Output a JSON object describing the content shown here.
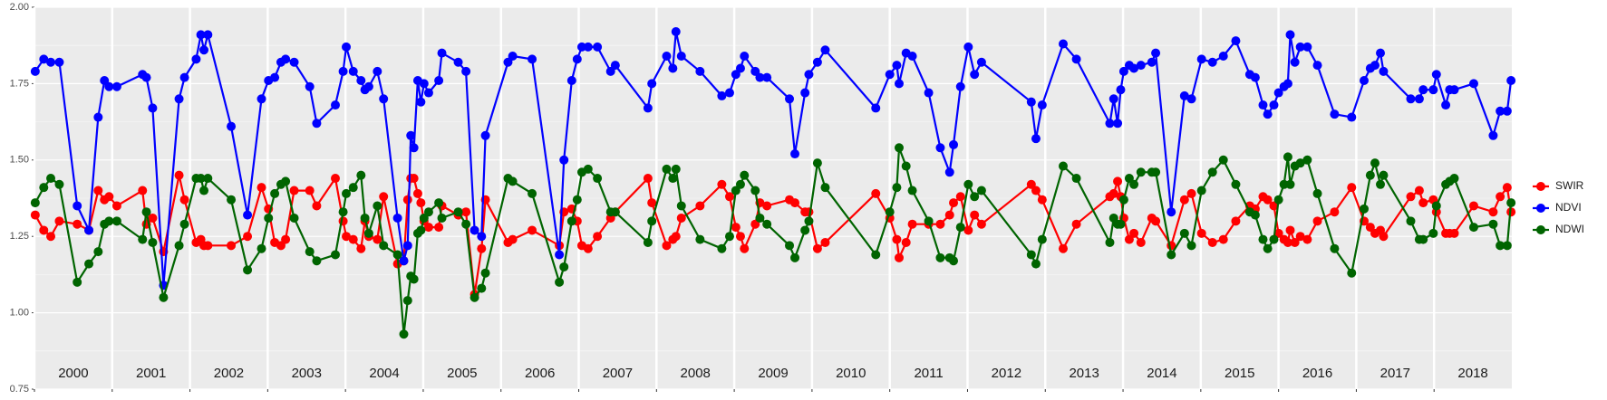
{
  "chart_data": {
    "type": "line",
    "x": [
      2000.01,
      2000.12,
      2000.21,
      2000.32,
      2000.55,
      2000.7,
      2000.82,
      2000.9,
      2000.96,
      2001.06,
      2001.39,
      2001.44,
      2001.52,
      2001.66,
      2001.86,
      2001.93,
      2002.08,
      2002.14,
      2002.18,
      2002.23,
      2002.53,
      2002.74,
      2002.92,
      2003.01,
      2003.09,
      2003.17,
      2003.23,
      2003.34,
      2003.54,
      2003.63,
      2003.87,
      2003.97,
      2004.01,
      2004.1,
      2004.2,
      2004.25,
      2004.3,
      2004.41,
      2004.49,
      2004.67,
      2004.75,
      2004.8,
      2004.84,
      2004.88,
      2004.93,
      2004.97,
      2005.01,
      2005.07,
      2005.2,
      2005.24,
      2005.45,
      2005.55,
      2005.66,
      2005.75,
      2005.8,
      2006.09,
      2006.15,
      2006.4,
      2006.75,
      2006.81,
      2006.91,
      2006.98,
      2007.04,
      2007.12,
      2007.24,
      2007.41,
      2007.47,
      2007.89,
      2007.94,
      2008.13,
      2008.21,
      2008.25,
      2008.32,
      2008.56,
      2008.84,
      2008.94,
      2009.02,
      2009.08,
      2009.13,
      2009.27,
      2009.33,
      2009.42,
      2009.71,
      2009.78,
      2009.91,
      2009.96,
      2010.07,
      2010.17,
      2010.82,
      2011.0,
      2011.09,
      2011.12,
      2011.21,
      2011.29,
      2011.5,
      2011.65,
      2011.77,
      2011.82,
      2011.91,
      2012.01,
      2012.09,
      2012.18,
      2012.82,
      2012.88,
      2012.96,
      2013.23,
      2013.4,
      2013.83,
      2013.88,
      2013.93,
      2013.97,
      2014.01,
      2014.08,
      2014.14,
      2014.23,
      2014.37,
      2014.42,
      2014.62,
      2014.79,
      2014.88,
      2015.01,
      2015.15,
      2015.29,
      2015.45,
      2015.63,
      2015.7,
      2015.8,
      2015.86,
      2015.94,
      2016.0,
      2016.07,
      2016.12,
      2016.15,
      2016.21,
      2016.28,
      2016.37,
      2016.5,
      2016.72,
      2016.94,
      2017.1,
      2017.18,
      2017.24,
      2017.31,
      2017.35,
      2017.7,
      2017.81,
      2017.86,
      2017.99,
      2018.03,
      2018.15,
      2018.2,
      2018.26,
      2018.51,
      2018.76,
      2018.85,
      2018.94,
      2018.99
    ],
    "series": [
      {
        "name": "SWIR",
        "color": "#ff0000",
        "values": [
          1.32,
          1.27,
          1.25,
          1.3,
          1.29,
          1.27,
          1.4,
          1.37,
          1.38,
          1.35,
          1.4,
          1.29,
          1.31,
          1.2,
          1.45,
          1.37,
          1.23,
          1.24,
          1.22,
          1.22,
          1.22,
          1.25,
          1.41,
          1.34,
          1.23,
          1.22,
          1.24,
          1.4,
          1.4,
          1.35,
          1.44,
          1.3,
          1.25,
          1.24,
          1.21,
          1.3,
          1.25,
          1.24,
          1.38,
          1.16,
          1.17,
          1.37,
          1.44,
          1.44,
          1.39,
          1.36,
          1.3,
          1.28,
          1.28,
          1.35,
          1.32,
          1.33,
          1.06,
          1.21,
          1.37,
          1.23,
          1.24,
          1.27,
          1.22,
          1.33,
          1.34,
          1.3,
          1.22,
          1.21,
          1.25,
          1.31,
          1.33,
          1.44,
          1.36,
          1.22,
          1.24,
          1.25,
          1.31,
          1.35,
          1.42,
          1.38,
          1.28,
          1.25,
          1.21,
          1.29,
          1.36,
          1.35,
          1.37,
          1.36,
          1.33,
          1.33,
          1.21,
          1.23,
          1.39,
          1.31,
          1.24,
          1.18,
          1.23,
          1.29,
          1.29,
          1.29,
          1.32,
          1.36,
          1.38,
          1.27,
          1.32,
          1.29,
          1.42,
          1.4,
          1.37,
          1.21,
          1.29,
          1.38,
          1.39,
          1.43,
          1.38,
          1.31,
          1.24,
          1.26,
          1.23,
          1.31,
          1.3,
          1.22,
          1.37,
          1.39,
          1.26,
          1.23,
          1.24,
          1.3,
          1.35,
          1.34,
          1.38,
          1.37,
          1.35,
          1.26,
          1.24,
          1.23,
          1.27,
          1.23,
          1.25,
          1.24,
          1.3,
          1.33,
          1.41,
          1.3,
          1.28,
          1.26,
          1.27,
          1.25,
          1.38,
          1.4,
          1.36,
          1.37,
          1.33,
          1.26,
          1.26,
          1.26,
          1.35,
          1.33,
          1.38,
          1.41,
          1.33
        ]
      },
      {
        "name": "NDVI",
        "color": "#0000ff",
        "values": [
          1.79,
          1.83,
          1.82,
          1.82,
          1.35,
          1.27,
          1.64,
          1.76,
          1.74,
          1.74,
          1.78,
          1.77,
          1.67,
          1.09,
          1.7,
          1.77,
          1.83,
          1.91,
          1.86,
          1.91,
          1.61,
          1.32,
          1.7,
          1.76,
          1.77,
          1.82,
          1.83,
          1.82,
          1.74,
          1.62,
          1.68,
          1.79,
          1.87,
          1.79,
          1.76,
          1.73,
          1.74,
          1.79,
          1.7,
          1.31,
          1.17,
          1.22,
          1.58,
          1.54,
          1.76,
          1.69,
          1.75,
          1.72,
          1.76,
          1.85,
          1.82,
          1.79,
          1.27,
          1.25,
          1.58,
          1.82,
          1.84,
          1.83,
          1.19,
          1.5,
          1.76,
          1.83,
          1.87,
          1.87,
          1.87,
          1.79,
          1.81,
          1.67,
          1.75,
          1.84,
          1.8,
          1.92,
          1.84,
          1.79,
          1.71,
          1.72,
          1.78,
          1.8,
          1.84,
          1.79,
          1.77,
          1.77,
          1.7,
          1.52,
          1.72,
          1.78,
          1.82,
          1.86,
          1.67,
          1.78,
          1.81,
          1.75,
          1.85,
          1.84,
          1.72,
          1.54,
          1.46,
          1.55,
          1.74,
          1.87,
          1.78,
          1.82,
          1.69,
          1.57,
          1.68,
          1.88,
          1.83,
          1.62,
          1.7,
          1.62,
          1.73,
          1.79,
          1.81,
          1.8,
          1.81,
          1.82,
          1.85,
          1.33,
          1.71,
          1.7,
          1.83,
          1.82,
          1.84,
          1.89,
          1.78,
          1.77,
          1.68,
          1.65,
          1.68,
          1.72,
          1.74,
          1.75,
          1.91,
          1.82,
          1.87,
          1.87,
          1.81,
          1.65,
          1.64,
          1.76,
          1.8,
          1.81,
          1.85,
          1.79,
          1.7,
          1.7,
          1.73,
          1.73,
          1.78,
          1.68,
          1.73,
          1.73,
          1.75,
          1.58,
          1.66,
          1.66,
          1.76
        ]
      },
      {
        "name": "NDWI",
        "color": "#006400",
        "values": [
          1.36,
          1.41,
          1.44,
          1.42,
          1.1,
          1.16,
          1.2,
          1.29,
          1.3,
          1.3,
          1.24,
          1.33,
          1.23,
          1.05,
          1.22,
          1.29,
          1.44,
          1.44,
          1.4,
          1.44,
          1.37,
          1.14,
          1.21,
          1.31,
          1.39,
          1.42,
          1.43,
          1.31,
          1.2,
          1.17,
          1.19,
          1.33,
          1.39,
          1.41,
          1.45,
          1.31,
          1.26,
          1.35,
          1.22,
          1.19,
          0.93,
          1.04,
          1.12,
          1.11,
          1.26,
          1.27,
          1.31,
          1.33,
          1.36,
          1.31,
          1.33,
          1.29,
          1.05,
          1.08,
          1.13,
          1.44,
          1.43,
          1.39,
          1.1,
          1.15,
          1.3,
          1.37,
          1.46,
          1.47,
          1.44,
          1.33,
          1.33,
          1.23,
          1.3,
          1.47,
          1.44,
          1.47,
          1.35,
          1.24,
          1.21,
          1.25,
          1.4,
          1.42,
          1.45,
          1.4,
          1.31,
          1.29,
          1.22,
          1.18,
          1.27,
          1.3,
          1.49,
          1.41,
          1.19,
          1.33,
          1.41,
          1.54,
          1.48,
          1.4,
          1.3,
          1.18,
          1.18,
          1.17,
          1.28,
          1.42,
          1.38,
          1.4,
          1.19,
          1.16,
          1.24,
          1.48,
          1.44,
          1.23,
          1.31,
          1.29,
          1.29,
          1.37,
          1.44,
          1.42,
          1.46,
          1.46,
          1.46,
          1.19,
          1.26,
          1.22,
          1.4,
          1.46,
          1.5,
          1.42,
          1.33,
          1.32,
          1.24,
          1.21,
          1.24,
          1.37,
          1.42,
          1.51,
          1.42,
          1.48,
          1.49,
          1.5,
          1.39,
          1.21,
          1.13,
          1.34,
          1.45,
          1.49,
          1.42,
          1.45,
          1.3,
          1.24,
          1.24,
          1.26,
          1.35,
          1.42,
          1.43,
          1.44,
          1.28,
          1.29,
          1.22,
          1.22,
          1.36
        ]
      }
    ],
    "xlim": [
      2000,
      2019
    ],
    "xticks": [
      {
        "value": 2000,
        "label": "2000"
      },
      {
        "value": 2001,
        "label": "2001"
      },
      {
        "value": 2002,
        "label": "2002"
      },
      {
        "value": 2003,
        "label": "2003"
      },
      {
        "value": 2004,
        "label": "2004"
      },
      {
        "value": 2005,
        "label": "2005"
      },
      {
        "value": 2006,
        "label": "2006"
      },
      {
        "value": 2007,
        "label": "2007"
      },
      {
        "value": 2008,
        "label": "2008"
      },
      {
        "value": 2009,
        "label": "2009"
      },
      {
        "value": 2010,
        "label": "2010"
      },
      {
        "value": 2011,
        "label": "2011"
      },
      {
        "value": 2012,
        "label": "2012"
      },
      {
        "value": 2013,
        "label": "2013"
      },
      {
        "value": 2014,
        "label": "2014"
      },
      {
        "value": 2015,
        "label": "2015"
      },
      {
        "value": 2016,
        "label": "2016"
      },
      {
        "value": 2017,
        "label": "2017"
      },
      {
        "value": 2018,
        "label": "2018"
      }
    ],
    "ylim": [
      0.75,
      2.0
    ],
    "yticks": [
      0.75,
      {
        "value": 1.0,
        "label": "1.00"
      },
      1.25,
      {
        "value": 1.5,
        "label": "1.50"
      },
      1.75,
      {
        "value": 2.0,
        "label": "2.00"
      }
    ],
    "grid": true,
    "legend": "right"
  }
}
